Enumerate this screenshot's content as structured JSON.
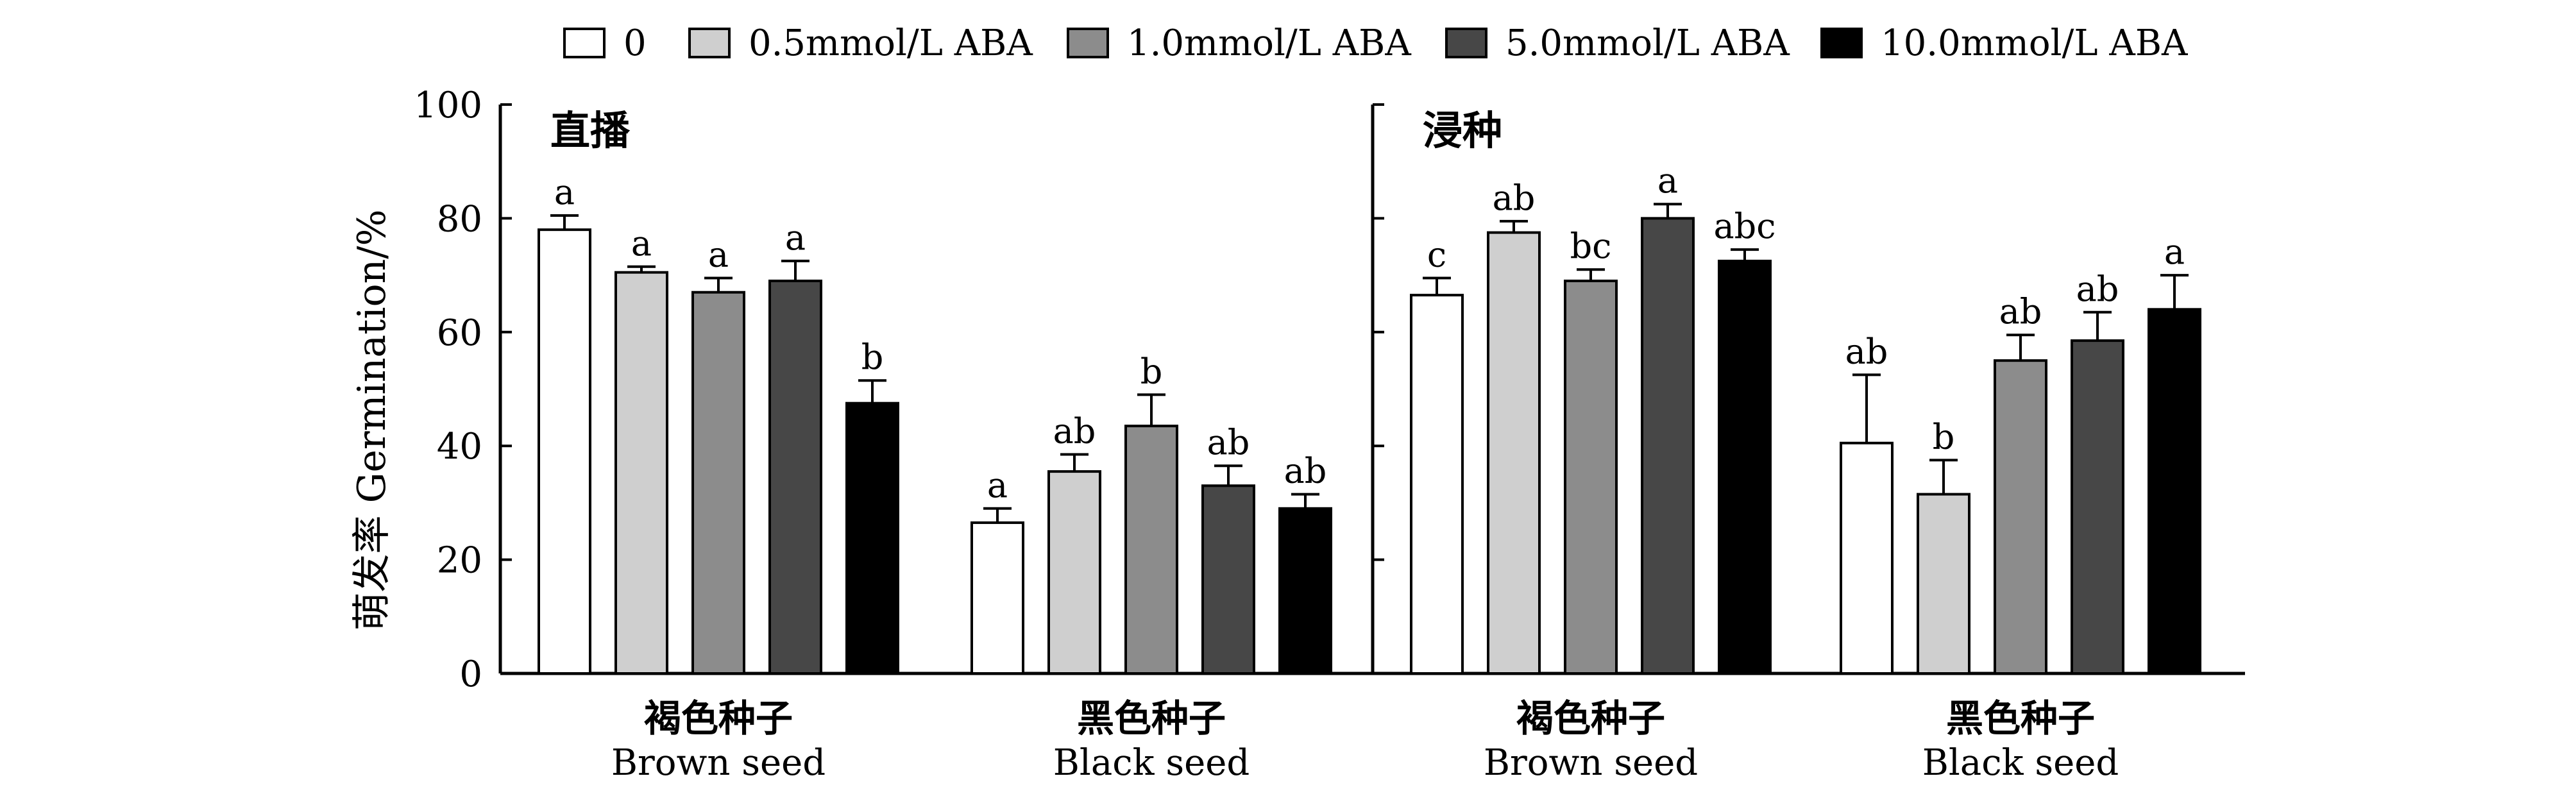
{
  "legend": [
    {
      "label": "0",
      "color": "#ffffff"
    },
    {
      "label": "0.5mmol/L ABA",
      "color": "#cfcfcf"
    },
    {
      "label": "1.0mmol/L ABA",
      "color": "#8c8c8c"
    },
    {
      "label": "5.0mmol/L ABA",
      "color": "#474747"
    },
    {
      "label": "10.0mmol/L ABA",
      "color": "#000000"
    }
  ],
  "chart_data": {
    "type": "bar",
    "ylabel": "萌发率 Germination/%",
    "ylim": [
      0,
      100
    ],
    "yticks": [
      "0",
      "20",
      "40",
      "60",
      "80",
      "100"
    ],
    "series_names": [
      "0",
      "0.5mmol/L ABA",
      "1.0mmol/L ABA",
      "5.0mmol/L ABA",
      "10.0mmol/L ABA"
    ],
    "panels": [
      {
        "title": "直播",
        "groups": [
          {
            "label_cn": "褐色种子",
            "label_en": "Brown seed",
            "values": [
              78,
              70.5,
              67,
              69,
              47.5
            ],
            "errors": [
              2.5,
              1,
              2.5,
              3.5,
              4
            ],
            "letters": [
              "a",
              "a",
              "a",
              "a",
              "b"
            ]
          },
          {
            "label_cn": "黑色种子",
            "label_en": "Black seed",
            "values": [
              26.5,
              35.5,
              43.5,
              33,
              29
            ],
            "errors": [
              2.5,
              3,
              5.5,
              3.5,
              2.5
            ],
            "letters": [
              "a",
              "ab",
              "b",
              "ab",
              "ab"
            ]
          }
        ]
      },
      {
        "title": "浸种",
        "groups": [
          {
            "label_cn": "褐色种子",
            "label_en": "Brown seed",
            "values": [
              66.5,
              77.5,
              69,
              80,
              72.5
            ],
            "errors": [
              3,
              2,
              2,
              2.5,
              2
            ],
            "letters": [
              "c",
              "ab",
              "bc",
              "a",
              "abc"
            ]
          },
          {
            "label_cn": "黑色种子",
            "label_en": "Black seed",
            "values": [
              40.5,
              31.5,
              55,
              58.5,
              64
            ],
            "errors": [
              12,
              6,
              4.5,
              5,
              6
            ],
            "letters": [
              "ab",
              "b",
              "ab",
              "ab",
              "a"
            ]
          }
        ]
      }
    ]
  }
}
